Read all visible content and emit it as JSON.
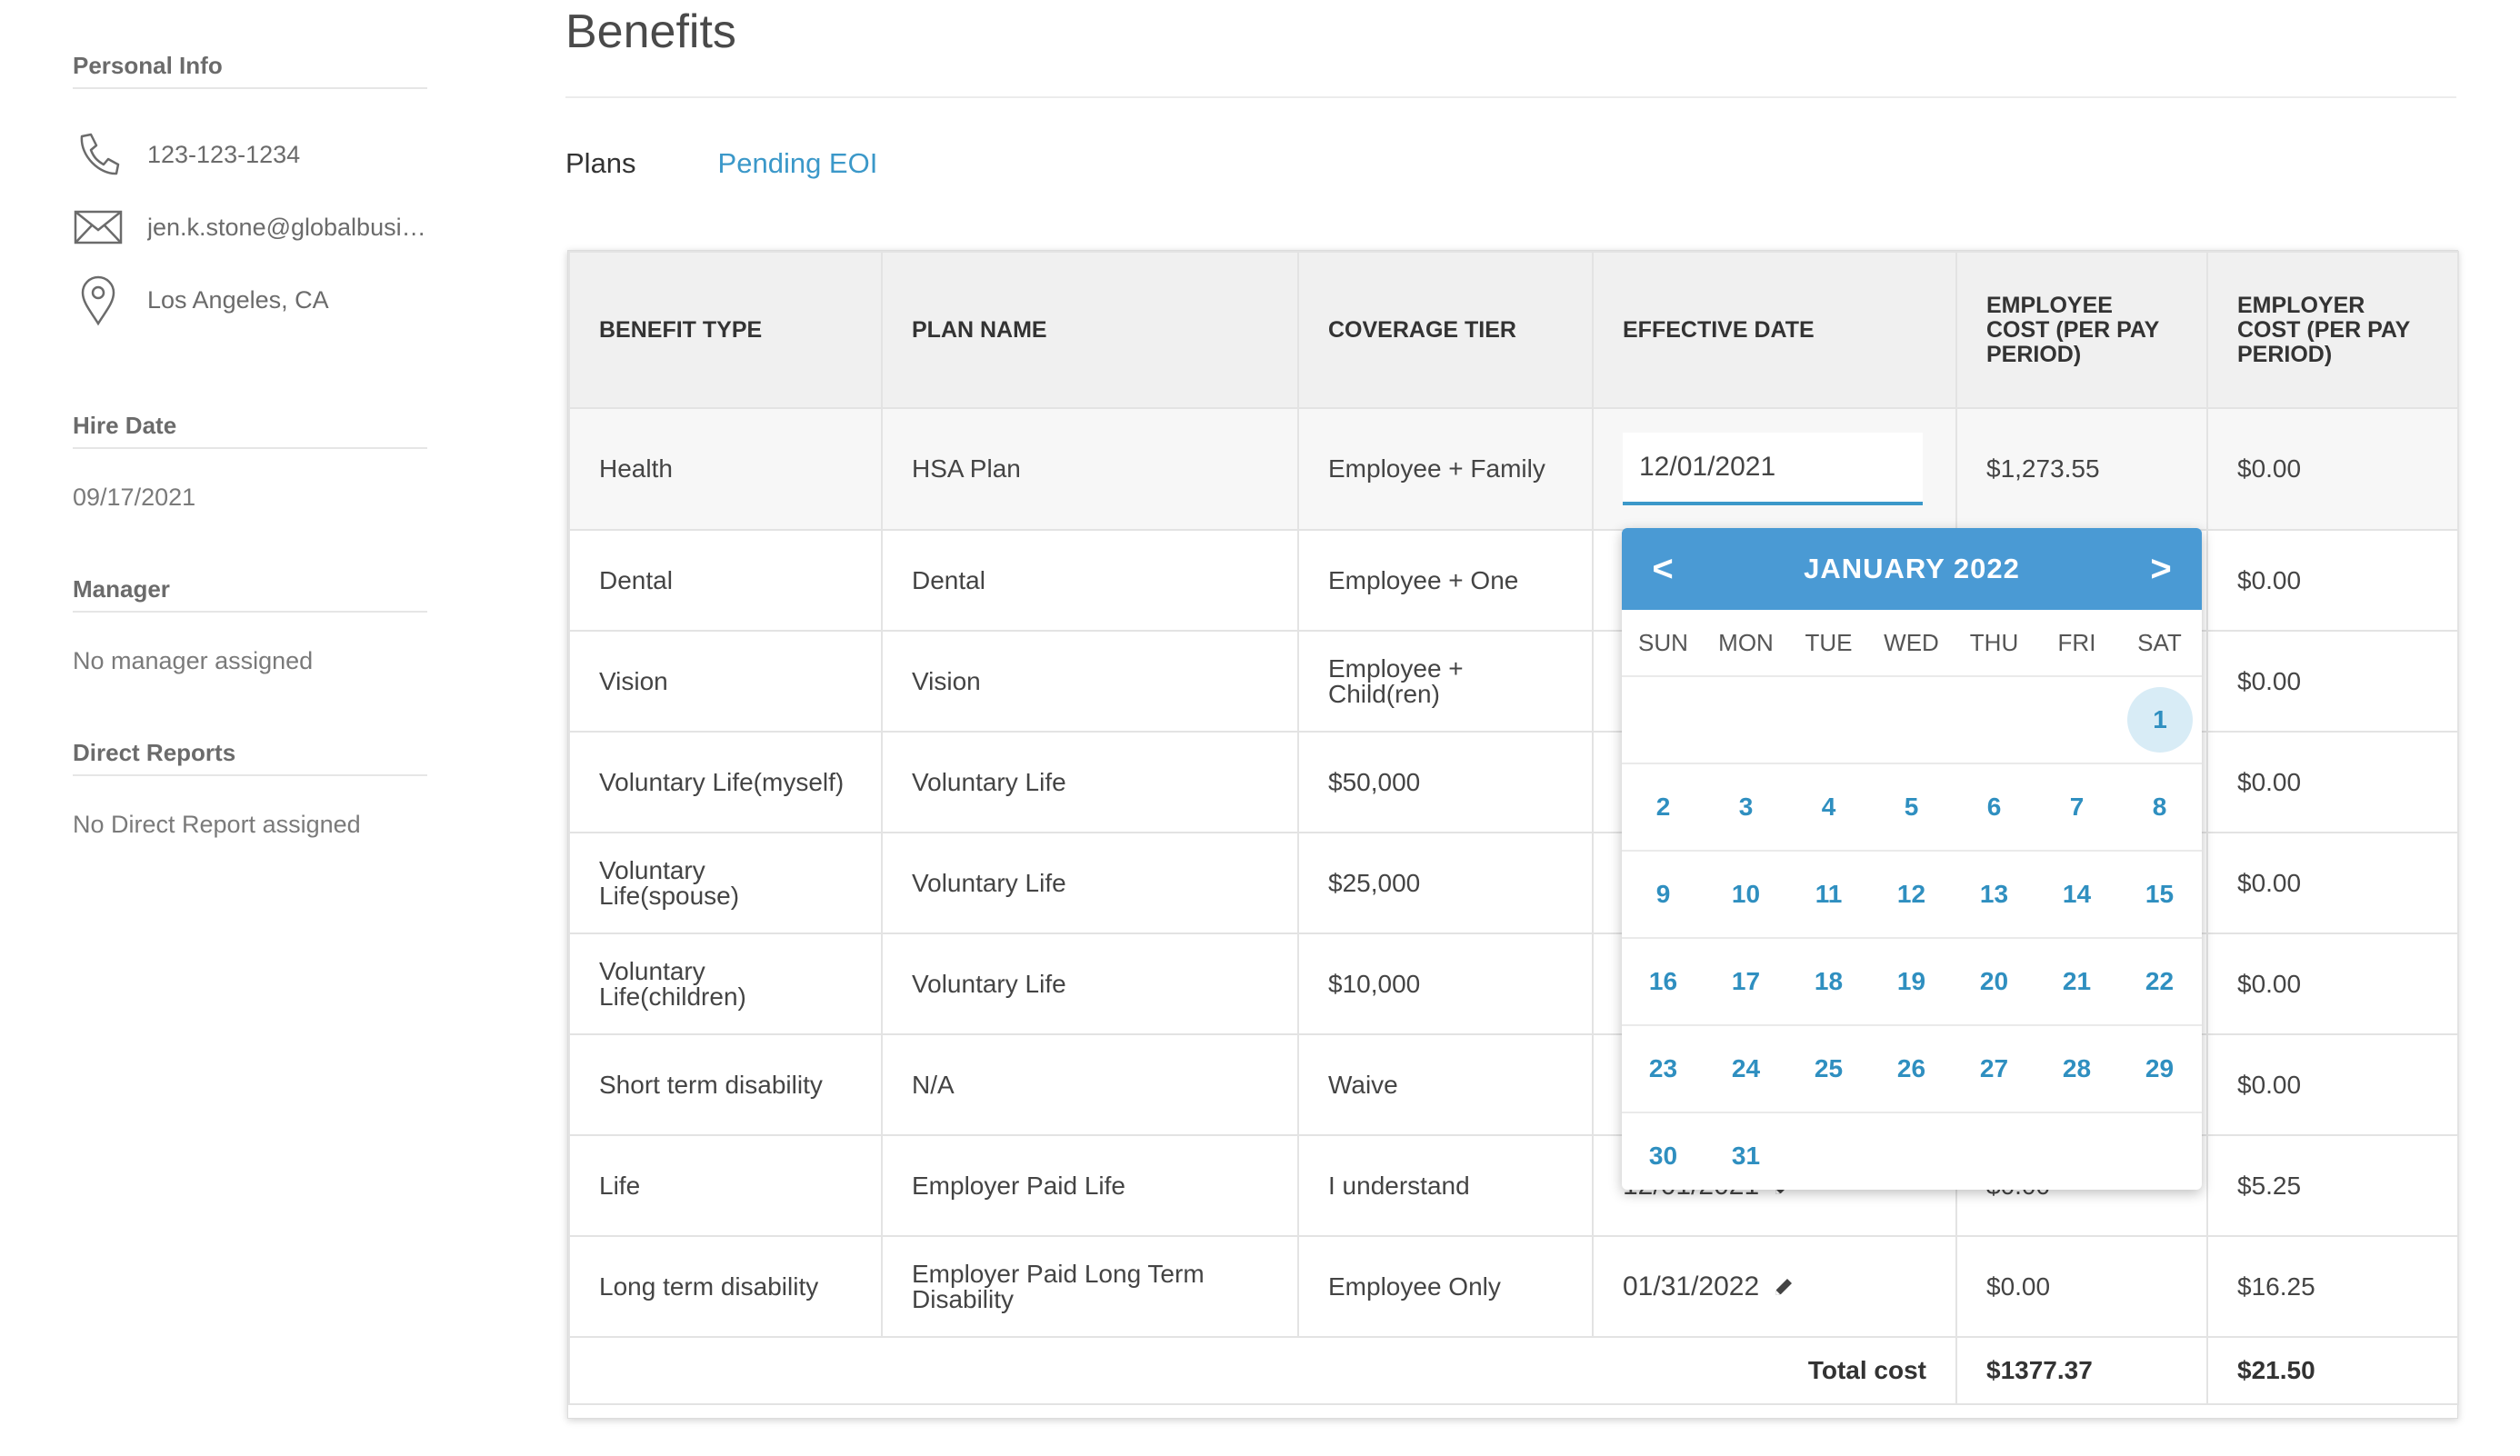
{
  "sidebar": {
    "personal_info_heading": "Personal Info",
    "phone": "123-123-1234",
    "email": "jen.k.stone@globalbusin...",
    "location": "Los Angeles, CA",
    "hire_date_heading": "Hire Date",
    "hire_date": "09/17/2021",
    "manager_heading": "Manager",
    "manager": "No manager assigned",
    "direct_reports_heading": "Direct Reports",
    "direct_reports": "No Direct Report assigned"
  },
  "page": {
    "title": "Benefits",
    "tabs": [
      "Plans",
      "Pending EOI"
    ]
  },
  "table": {
    "headers": [
      "BENEFIT TYPE",
      "PLAN NAME",
      "COVERAGE TIER",
      "EFFECTIVE DATE",
      "EMPLOYEE COST (PER PAY PERIOD)",
      "EMPLOYER COST (PER PAY PERIOD)"
    ],
    "rows": [
      {
        "type": "Health",
        "plan": "HSA Plan",
        "tier": "Employee + Family",
        "date": "12/01/2021",
        "employee_cost": "$1,273.55",
        "employer_cost": "$0.00"
      },
      {
        "type": "Dental",
        "plan": "Dental",
        "tier": "Employee + One",
        "date": "",
        "employee_cost": "",
        "employer_cost": "$0.00"
      },
      {
        "type": "Vision",
        "plan": "Vision",
        "tier": "Employee + Child(ren)",
        "date": "",
        "employee_cost": "",
        "employer_cost": "$0.00"
      },
      {
        "type": "Voluntary Life(myself)",
        "plan": "Voluntary Life",
        "tier": "$50,000",
        "date": "",
        "employee_cost": "",
        "employer_cost": "$0.00"
      },
      {
        "type": "Voluntary Life(spouse)",
        "plan": "Voluntary Life",
        "tier": "$25,000",
        "date": "",
        "employee_cost": "",
        "employer_cost": "$0.00"
      },
      {
        "type": "Voluntary Life(children)",
        "plan": "Voluntary Life",
        "tier": "$10,000",
        "date": "",
        "employee_cost": "",
        "employer_cost": "$0.00"
      },
      {
        "type": "Short term disability",
        "plan": "N/A",
        "tier": "Waive",
        "date": "",
        "employee_cost": "",
        "employer_cost": "$0.00"
      },
      {
        "type": "Life",
        "plan": "Employer Paid Life",
        "tier": "I understand",
        "date": "12/01/2021",
        "employee_cost": "$0.00",
        "employer_cost": "$5.25"
      },
      {
        "type": "Long term disability",
        "plan": "Employer Paid Long Term Disability",
        "tier": "Employee Only",
        "date": "01/31/2022",
        "employee_cost": "$0.00",
        "employer_cost": "$16.25"
      }
    ],
    "total_label": "Total cost",
    "total_employee": "$1377.37",
    "total_employer": "$21.50"
  },
  "datepicker": {
    "month_label": "JANUARY 2022",
    "prev": "<",
    "next": ">",
    "weekdays": [
      "SUN",
      "MON",
      "TUE",
      "WED",
      "THU",
      "FRI",
      "SAT"
    ],
    "weeks": [
      [
        "",
        "",
        "",
        "",
        "",
        "",
        "1"
      ],
      [
        "2",
        "3",
        "4",
        "5",
        "6",
        "7",
        "8"
      ],
      [
        "9",
        "10",
        "11",
        "12",
        "13",
        "14",
        "15"
      ],
      [
        "16",
        "17",
        "18",
        "19",
        "20",
        "21",
        "22"
      ],
      [
        "23",
        "24",
        "25",
        "26",
        "27",
        "28",
        "29"
      ],
      [
        "30",
        "31",
        "",
        "",
        "",
        "",
        ""
      ]
    ],
    "selected_day": "1"
  },
  "colors": {
    "accent": "#3b98c9",
    "picker_header": "#4a9ad4",
    "selected_day_bg": "#d8ecf6"
  }
}
